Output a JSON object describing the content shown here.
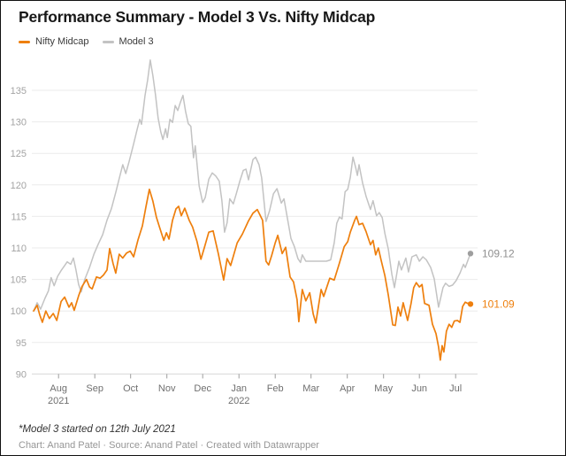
{
  "header": {
    "title": "Performance Summary - Model 3 Vs. Nifty Midcap"
  },
  "legend": {
    "items": [
      {
        "label": "Nifty Midcap",
        "color": "#ee7f0d"
      },
      {
        "label": "Model 3",
        "color": "#c3c3c3"
      }
    ]
  },
  "footer": {
    "footnote": "*Model 3 started on 12th July 2021",
    "attribution": "Chart: Anand Patel · Source: Anand Patel · Created with Datawrapper"
  },
  "chart_data": {
    "type": "line",
    "title": "Performance Summary - Model 3 Vs. Nifty Midcap",
    "x_range_note": "t is fraction of time axis from 12 Jul 2021 (0) to mid-Jul 2022 (1)",
    "y_axis": {
      "min": 90,
      "max": 141,
      "tick_step": 5,
      "ticks": [
        135,
        130,
        125,
        120,
        115,
        110,
        105,
        100,
        95,
        90
      ]
    },
    "x_axis": {
      "ticks": [
        {
          "label": "Aug",
          "year": "2021",
          "t": 0.057
        },
        {
          "label": "Sep",
          "t": 0.14
        },
        {
          "label": "Oct",
          "t": 0.222
        },
        {
          "label": "Nov",
          "t": 0.305
        },
        {
          "label": "Dec",
          "t": 0.387
        },
        {
          "label": "Jan",
          "year": "2022",
          "t": 0.47
        },
        {
          "label": "Feb",
          "t": 0.553
        },
        {
          "label": "Mar",
          "t": 0.635
        },
        {
          "label": "Apr",
          "t": 0.718
        },
        {
          "label": "May",
          "t": 0.801
        },
        {
          "label": "Jun",
          "t": 0.883
        },
        {
          "label": "Jul",
          "t": 0.966
        }
      ]
    },
    "series": [
      {
        "name": "Model 3",
        "color": "#c3c3c3",
        "dot_color": "#9e9e9e",
        "label_color": "#8f8f8f",
        "width": 1.5,
        "end_label": "109.12",
        "points": [
          [
            0,
            100
          ],
          [
            0.008,
            101.3
          ],
          [
            0.016,
            100.3
          ],
          [
            0.026,
            102
          ],
          [
            0.034,
            103.2
          ],
          [
            0.04,
            105.3
          ],
          [
            0.047,
            104
          ],
          [
            0.055,
            105.5
          ],
          [
            0.063,
            106.4
          ],
          [
            0.071,
            107.2
          ],
          [
            0.077,
            107.8
          ],
          [
            0.085,
            107.4
          ],
          [
            0.091,
            108.4
          ],
          [
            0.097,
            106.5
          ],
          [
            0.103,
            104.2
          ],
          [
            0.109,
            103
          ],
          [
            0.117,
            105
          ],
          [
            0.128,
            106.9
          ],
          [
            0.138,
            109
          ],
          [
            0.148,
            110.6
          ],
          [
            0.158,
            112.1
          ],
          [
            0.168,
            114.4
          ],
          [
            0.178,
            116.2
          ],
          [
            0.188,
            118.8
          ],
          [
            0.196,
            121
          ],
          [
            0.204,
            123.2
          ],
          [
            0.211,
            121.8
          ],
          [
            0.219,
            123.8
          ],
          [
            0.229,
            126.5
          ],
          [
            0.237,
            128.8
          ],
          [
            0.243,
            130.4
          ],
          [
            0.247,
            129.6
          ],
          [
            0.255,
            134.2
          ],
          [
            0.261,
            136.6
          ],
          [
            0.267,
            139.8
          ],
          [
            0.273,
            137.3
          ],
          [
            0.279,
            134.3
          ],
          [
            0.285,
            130.6
          ],
          [
            0.291,
            128.4
          ],
          [
            0.296,
            127.2
          ],
          [
            0.302,
            128.9
          ],
          [
            0.306,
            127.5
          ],
          [
            0.312,
            130.4
          ],
          [
            0.318,
            129.9
          ],
          [
            0.324,
            132.6
          ],
          [
            0.33,
            131.8
          ],
          [
            0.336,
            133.1
          ],
          [
            0.342,
            134.2
          ],
          [
            0.348,
            131.6
          ],
          [
            0.354,
            129.7
          ],
          [
            0.36,
            129.3
          ],
          [
            0.366,
            124.3
          ],
          [
            0.37,
            126.2
          ],
          [
            0.379,
            119.8
          ],
          [
            0.387,
            117.2
          ],
          [
            0.393,
            118
          ],
          [
            0.401,
            120.9
          ],
          [
            0.409,
            121.9
          ],
          [
            0.417,
            121.4
          ],
          [
            0.425,
            120.6
          ],
          [
            0.431,
            117.5
          ],
          [
            0.437,
            112.5
          ],
          [
            0.443,
            114
          ],
          [
            0.449,
            117.8
          ],
          [
            0.457,
            117
          ],
          [
            0.464,
            118.6
          ],
          [
            0.472,
            120.6
          ],
          [
            0.48,
            122.3
          ],
          [
            0.486,
            122.5
          ],
          [
            0.492,
            120.8
          ],
          [
            0.502,
            124
          ],
          [
            0.508,
            124.4
          ],
          [
            0.516,
            123.2
          ],
          [
            0.522,
            121.1
          ],
          [
            0.532,
            114.2
          ],
          [
            0.54,
            115.9
          ],
          [
            0.549,
            118.6
          ],
          [
            0.557,
            119.4
          ],
          [
            0.567,
            117.1
          ],
          [
            0.573,
            117.8
          ],
          [
            0.583,
            113.9
          ],
          [
            0.589,
            111.5
          ],
          [
            0.597,
            110.2
          ],
          [
            0.605,
            108.3
          ],
          [
            0.611,
            107.7
          ],
          [
            0.615,
            108.9
          ],
          [
            0.623,
            107.9
          ],
          [
            0.638,
            107.9
          ],
          [
            0.654,
            107.9
          ],
          [
            0.67,
            107.9
          ],
          [
            0.68,
            108.1
          ],
          [
            0.688,
            110.8
          ],
          [
            0.694,
            113.9
          ],
          [
            0.7,
            114.9
          ],
          [
            0.706,
            114.6
          ],
          [
            0.713,
            118.9
          ],
          [
            0.719,
            119.3
          ],
          [
            0.725,
            121.2
          ],
          [
            0.731,
            124.4
          ],
          [
            0.737,
            122.8
          ],
          [
            0.741,
            121.5
          ],
          [
            0.745,
            123.2
          ],
          [
            0.753,
            120.3
          ],
          [
            0.761,
            118.2
          ],
          [
            0.771,
            116.1
          ],
          [
            0.777,
            117.5
          ],
          [
            0.785,
            115.1
          ],
          [
            0.791,
            115.6
          ],
          [
            0.798,
            114.8
          ],
          [
            0.804,
            112.3
          ],
          [
            0.812,
            109.8
          ],
          [
            0.82,
            105.8
          ],
          [
            0.826,
            103.7
          ],
          [
            0.836,
            107.9
          ],
          [
            0.842,
            106.5
          ],
          [
            0.852,
            108.4
          ],
          [
            0.858,
            106.2
          ],
          [
            0.866,
            108.6
          ],
          [
            0.876,
            108.9
          ],
          [
            0.883,
            107.9
          ],
          [
            0.891,
            108.6
          ],
          [
            0.899,
            108.1
          ],
          [
            0.909,
            106.9
          ],
          [
            0.917,
            105.1
          ],
          [
            0.927,
            100.6
          ],
          [
            0.937,
            103.7
          ],
          [
            0.943,
            104.4
          ],
          [
            0.951,
            103.9
          ],
          [
            0.959,
            104.1
          ],
          [
            0.967,
            104.8
          ],
          [
            0.976,
            106
          ],
          [
            0.984,
            107.4
          ],
          [
            0.988,
            106.9
          ],
          [
            0.994,
            108
          ],
          [
            1,
            109.12
          ]
        ]
      },
      {
        "name": "Nifty Midcap",
        "color": "#ee7f0d",
        "dot_color": "#ee7f0d",
        "label_color": "#ee7f0d",
        "width": 1.7,
        "end_label": "101.09",
        "points": [
          [
            0,
            100
          ],
          [
            0.008,
            100.9
          ],
          [
            0.014,
            99.4
          ],
          [
            0.02,
            98.2
          ],
          [
            0.028,
            100
          ],
          [
            0.036,
            98.8
          ],
          [
            0.045,
            99.6
          ],
          [
            0.053,
            98.5
          ],
          [
            0.063,
            101.5
          ],
          [
            0.071,
            102.2
          ],
          [
            0.081,
            100.6
          ],
          [
            0.087,
            101.3
          ],
          [
            0.093,
            100.1
          ],
          [
            0.103,
            102.4
          ],
          [
            0.111,
            103.9
          ],
          [
            0.121,
            105
          ],
          [
            0.128,
            103.8
          ],
          [
            0.134,
            103.5
          ],
          [
            0.144,
            105.4
          ],
          [
            0.152,
            105.2
          ],
          [
            0.16,
            105.7
          ],
          [
            0.168,
            106.5
          ],
          [
            0.174,
            109.9
          ],
          [
            0.182,
            107.5
          ],
          [
            0.188,
            106
          ],
          [
            0.196,
            109
          ],
          [
            0.204,
            108.4
          ],
          [
            0.213,
            109.2
          ],
          [
            0.221,
            109.5
          ],
          [
            0.229,
            108.6
          ],
          [
            0.239,
            111.3
          ],
          [
            0.249,
            113.5
          ],
          [
            0.257,
            116.5
          ],
          [
            0.265,
            119.3
          ],
          [
            0.273,
            117.4
          ],
          [
            0.281,
            114.9
          ],
          [
            0.289,
            113.1
          ],
          [
            0.298,
            111.2
          ],
          [
            0.304,
            112.4
          ],
          [
            0.31,
            111.4
          ],
          [
            0.318,
            114.4
          ],
          [
            0.326,
            116.2
          ],
          [
            0.332,
            116.6
          ],
          [
            0.338,
            115.1
          ],
          [
            0.346,
            116.3
          ],
          [
            0.356,
            114.4
          ],
          [
            0.364,
            113.3
          ],
          [
            0.374,
            111
          ],
          [
            0.383,
            108.2
          ],
          [
            0.391,
            110.1
          ],
          [
            0.401,
            112.5
          ],
          [
            0.411,
            112.7
          ],
          [
            0.423,
            109
          ],
          [
            0.435,
            104.9
          ],
          [
            0.443,
            108.3
          ],
          [
            0.451,
            107.2
          ],
          [
            0.466,
            110.8
          ],
          [
            0.478,
            112.2
          ],
          [
            0.492,
            114.3
          ],
          [
            0.502,
            115.5
          ],
          [
            0.512,
            116.1
          ],
          [
            0.524,
            114.4
          ],
          [
            0.532,
            107.9
          ],
          [
            0.538,
            107.3
          ],
          [
            0.545,
            108.8
          ],
          [
            0.553,
            110.8
          ],
          [
            0.559,
            112
          ],
          [
            0.569,
            109.1
          ],
          [
            0.577,
            110.1
          ],
          [
            0.587,
            105.4
          ],
          [
            0.595,
            104.6
          ],
          [
            0.603,
            101.8
          ],
          [
            0.607,
            98.3
          ],
          [
            0.615,
            103.4
          ],
          [
            0.623,
            101.6
          ],
          [
            0.632,
            102.9
          ],
          [
            0.64,
            99.5
          ],
          [
            0.646,
            98.1
          ],
          [
            0.658,
            103.4
          ],
          [
            0.664,
            102.3
          ],
          [
            0.678,
            105.2
          ],
          [
            0.688,
            104.9
          ],
          [
            0.7,
            107.6
          ],
          [
            0.711,
            110.2
          ],
          [
            0.719,
            111
          ],
          [
            0.725,
            112.5
          ],
          [
            0.735,
            114.4
          ],
          [
            0.739,
            115
          ],
          [
            0.745,
            113.7
          ],
          [
            0.753,
            113.9
          ],
          [
            0.761,
            112.6
          ],
          [
            0.771,
            110.5
          ],
          [
            0.777,
            111.2
          ],
          [
            0.783,
            108.9
          ],
          [
            0.789,
            110
          ],
          [
            0.795,
            108.2
          ],
          [
            0.804,
            105.6
          ],
          [
            0.812,
            102.5
          ],
          [
            0.822,
            97.8
          ],
          [
            0.828,
            97.7
          ],
          [
            0.834,
            100.6
          ],
          [
            0.84,
            99.2
          ],
          [
            0.846,
            101.3
          ],
          [
            0.856,
            98.5
          ],
          [
            0.864,
            101.2
          ],
          [
            0.87,
            103.7
          ],
          [
            0.876,
            104.5
          ],
          [
            0.883,
            103.8
          ],
          [
            0.889,
            104.2
          ],
          [
            0.895,
            101.2
          ],
          [
            0.905,
            100.9
          ],
          [
            0.913,
            97.9
          ],
          [
            0.921,
            96.4
          ],
          [
            0.927,
            94.3
          ],
          [
            0.931,
            92.2
          ],
          [
            0.935,
            94.5
          ],
          [
            0.939,
            93.5
          ],
          [
            0.945,
            96.8
          ],
          [
            0.951,
            97.9
          ],
          [
            0.957,
            97.4
          ],
          [
            0.963,
            98.4
          ],
          [
            0.97,
            98.5
          ],
          [
            0.976,
            98.2
          ],
          [
            0.982,
            100.7
          ],
          [
            0.988,
            101.4
          ],
          [
            0.994,
            101.2
          ],
          [
            1,
            101.09
          ]
        ]
      }
    ]
  }
}
